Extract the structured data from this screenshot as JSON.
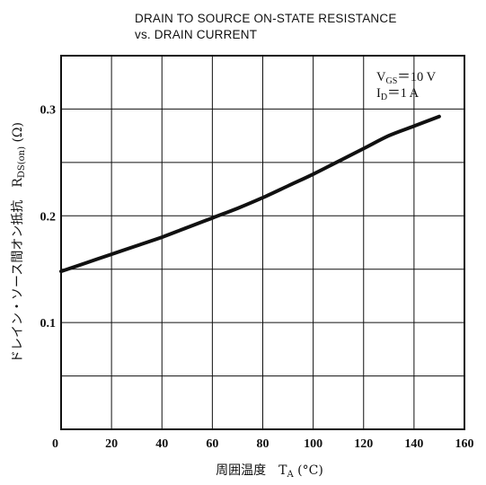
{
  "chart_data": {
    "type": "line",
    "title": "DRAIN TO SOURCE ON-STATE RESISTANCE",
    "subtitle": "vs. DRAIN CURRENT",
    "xlabel": {
      "main": "周囲温度　T",
      "sub": "A",
      "unit": " (°C)"
    },
    "ylabel": {
      "main": "ドレイン・ソース間オン抵抗　R",
      "sub": "DS(on)",
      "unit": " (Ω)"
    },
    "xlim": [
      0,
      160
    ],
    "ylim": [
      0,
      0.35
    ],
    "x_ticks": [
      "0",
      "20",
      "40",
      "60",
      "80",
      "100",
      "120",
      "140",
      "160"
    ],
    "y_ticks": [
      "0.1",
      "0.2",
      "0.3"
    ],
    "grid": true,
    "annotations": {
      "vgs": {
        "base": "V",
        "sub": "GS",
        "rest": "＝10  V"
      },
      "id": {
        "base": "I",
        "sub": "D",
        "rest": "＝1  A"
      }
    },
    "series": [
      {
        "x": [
          0,
          10,
          20,
          30,
          40,
          50,
          60,
          70,
          80,
          90,
          100,
          110,
          120,
          130,
          140,
          150
        ],
        "values": [
          0.148,
          0.156,
          0.164,
          0.172,
          0.18,
          0.189,
          0.198,
          0.207,
          0.217,
          0.228,
          0.239,
          0.251,
          0.263,
          0.275,
          0.284,
          0.293
        ]
      }
    ],
    "colors": {
      "line": "#111111",
      "grid": "#111111",
      "background": "#ffffff"
    }
  }
}
